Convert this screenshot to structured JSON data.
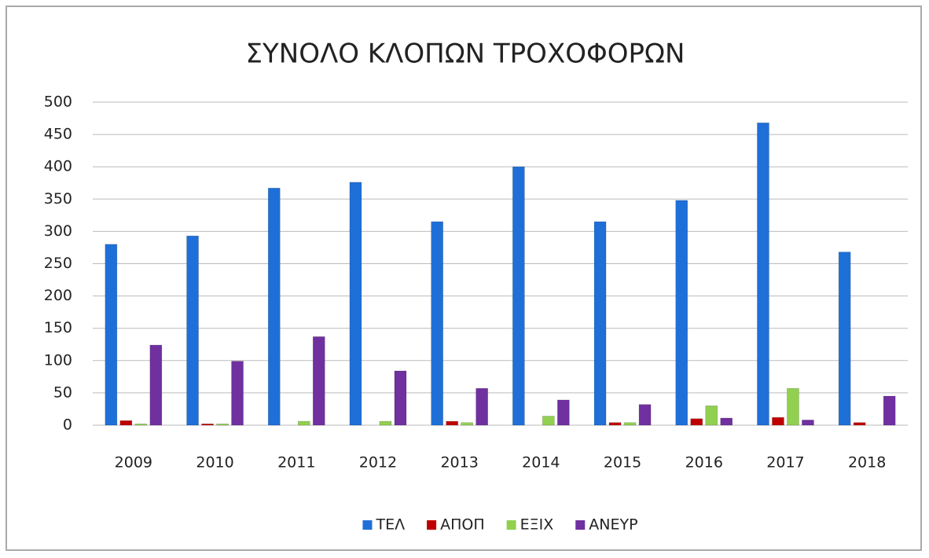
{
  "chart_data": {
    "type": "bar",
    "title": "ΣΥΝΟΛΟ ΚΛΟΠΩΝ ΤΡΟΧΟΦΟΡΩΝ",
    "categories": [
      "2009",
      "2010",
      "2011",
      "2012",
      "2013",
      "2014",
      "2015",
      "2016",
      "2017",
      "2018"
    ],
    "series": [
      {
        "name": "ΤΕΛ",
        "color": "#1f6fd8",
        "values": [
          280,
          293,
          367,
          376,
          315,
          400,
          315,
          348,
          468,
          268
        ]
      },
      {
        "name": "ΑΠΟΠ",
        "color": "#c00000",
        "values": [
          7,
          2,
          0,
          0,
          6,
          0,
          4,
          10,
          12,
          4
        ]
      },
      {
        "name": "ΕΞΙΧ",
        "color": "#92d050",
        "values": [
          2,
          2,
          6,
          6,
          4,
          14,
          4,
          30,
          57,
          0
        ]
      },
      {
        "name": "ΑΝΕΥΡ",
        "color": "#7030a0",
        "values": [
          124,
          99,
          137,
          84,
          57,
          39,
          32,
          11,
          8,
          45
        ]
      }
    ],
    "ylim": [
      0,
      500
    ],
    "yticks": [
      0,
      50,
      100,
      150,
      200,
      250,
      300,
      350,
      400,
      450,
      500
    ],
    "grid": true,
    "legend": "bottom"
  }
}
